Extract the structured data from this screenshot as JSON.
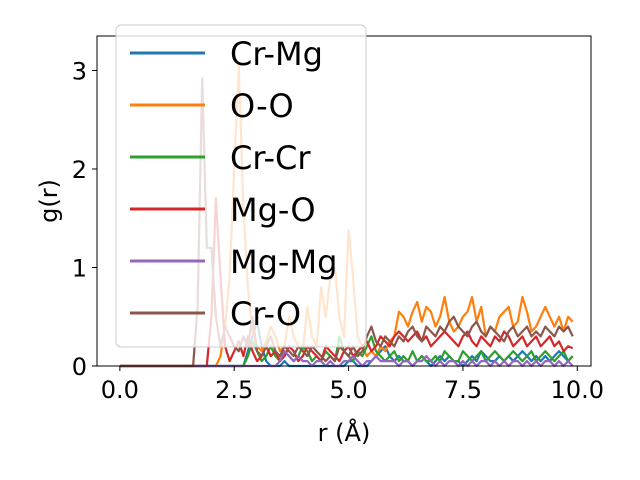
{
  "chart_data": {
    "type": "line",
    "title": "",
    "xlabel": "r (Å)",
    "ylabel": "g(r)",
    "xlim": [
      -0.5,
      10.3
    ],
    "ylim": [
      0,
      3.35
    ],
    "xticks": [
      "0.0",
      "2.5",
      "5.0",
      "7.5",
      "10.0"
    ],
    "xtick_values": [
      0,
      2.5,
      5,
      7.5,
      10
    ],
    "yticks": [
      "0",
      "1",
      "2",
      "3"
    ],
    "ytick_values": [
      0,
      1,
      2,
      3
    ],
    "grid": false,
    "legend": "upper-left",
    "x": [
      0,
      0.1,
      0.2,
      0.3,
      0.4,
      0.5,
      0.6,
      0.7,
      0.8,
      0.9,
      1.0,
      1.1,
      1.2,
      1.3,
      1.4,
      1.5,
      1.6,
      1.7,
      1.8,
      1.9,
      2.0,
      2.1,
      2.2,
      2.3,
      2.4,
      2.5,
      2.6,
      2.7,
      2.8,
      2.9,
      3.0,
      3.1,
      3.2,
      3.3,
      3.4,
      3.5,
      3.6,
      3.7,
      3.8,
      3.9,
      4.0,
      4.1,
      4.2,
      4.3,
      4.4,
      4.5,
      4.6,
      4.7,
      4.8,
      4.9,
      5.0,
      5.1,
      5.2,
      5.3,
      5.4,
      5.5,
      5.6,
      5.7,
      5.8,
      5.9,
      6.0,
      6.1,
      6.2,
      6.3,
      6.4,
      6.5,
      6.6,
      6.7,
      6.8,
      6.9,
      7.0,
      7.1,
      7.2,
      7.3,
      7.4,
      7.5,
      7.6,
      7.7,
      7.8,
      7.9,
      8.0,
      8.1,
      8.2,
      8.3,
      8.4,
      8.5,
      8.6,
      8.7,
      8.8,
      8.9,
      9.0,
      9.1,
      9.2,
      9.3,
      9.4,
      9.5,
      9.6,
      9.7,
      9.8,
      9.9
    ],
    "series": [
      {
        "name": "Cr-Mg",
        "color": "#1f77b4",
        "values": [
          0,
          0,
          0,
          0,
          0,
          0,
          0,
          0,
          0,
          0,
          0,
          0,
          0,
          0,
          0,
          0,
          0,
          0,
          0,
          0,
          0,
          0,
          0,
          0,
          0,
          0,
          0,
          0,
          0.15,
          0.3,
          0.45,
          0.2,
          0.05,
          0,
          0,
          0,
          0.05,
          0,
          0,
          0,
          0,
          0,
          0,
          0,
          0,
          0,
          0,
          0,
          0,
          0,
          0.05,
          0.05,
          0,
          0,
          0,
          0.05,
          0.1,
          0.15,
          0.2,
          0.1,
          0.05,
          0.1,
          0.05,
          0.05,
          0,
          0.05,
          0.1,
          0.05,
          0,
          0.05,
          0.1,
          0.05,
          0.1,
          0.05,
          0.05,
          0,
          0.05,
          0.1,
          0.05,
          0.15,
          0.1,
          0.05,
          0.05,
          0.1,
          0.05,
          0.1,
          0.05,
          0.1,
          0.15,
          0.1,
          0.05,
          0.1,
          0.05,
          0.1,
          0.05,
          0.1,
          0.15,
          0.1,
          0.05,
          0.1
        ]
      },
      {
        "name": "O-O",
        "color": "#ff7f0e",
        "values": [
          0,
          0,
          0,
          0,
          0,
          0,
          0,
          0,
          0,
          0,
          0,
          0,
          0,
          0,
          0,
          0,
          0,
          0,
          0,
          0,
          0,
          0,
          0.1,
          0.4,
          0.9,
          2.0,
          3.05,
          1.6,
          0.8,
          0.35,
          0.2,
          0.15,
          0.25,
          0.4,
          0.3,
          0.15,
          0.2,
          0.5,
          0.3,
          0.2,
          0.15,
          0.6,
          0.3,
          0.2,
          0.8,
          0.5,
          0.9,
          1.0,
          0.5,
          0.3,
          1.38,
          0.9,
          0.3,
          0.2,
          0.1,
          0.15,
          0.1,
          0.2,
          0.15,
          0.25,
          0.3,
          0.55,
          0.5,
          0.4,
          0.55,
          0.65,
          0.45,
          0.6,
          0.55,
          0.4,
          0.5,
          0.7,
          0.45,
          0.35,
          0.4,
          0.5,
          0.55,
          0.7,
          0.45,
          0.6,
          0.3,
          0.4,
          0.35,
          0.5,
          0.55,
          0.6,
          0.4,
          0.45,
          0.7,
          0.55,
          0.35,
          0.4,
          0.5,
          0.6,
          0.5,
          0.4,
          0.5,
          0.35,
          0.5,
          0.45
        ]
      },
      {
        "name": "Cr-Cr",
        "color": "#2ca02c",
        "values": [
          0,
          0,
          0,
          0,
          0,
          0,
          0,
          0,
          0,
          0,
          0,
          0,
          0,
          0,
          0,
          0,
          0,
          0,
          0,
          0,
          0,
          0,
          0,
          0,
          0,
          0,
          0,
          0,
          0.1,
          0.25,
          0.15,
          0.05,
          0.1,
          0.2,
          0.1,
          0.05,
          0.15,
          0.1,
          0.05,
          0.1,
          0.2,
          0.15,
          0.05,
          0.1,
          0.05,
          0.15,
          0.1,
          0.05,
          0.3,
          0.15,
          0.1,
          0.05,
          0.15,
          0.1,
          0.2,
          0.3,
          0.15,
          0.1,
          0.05,
          0.1,
          0.15,
          0.05,
          0.1,
          0.05,
          0.15,
          0.05,
          0.1,
          0.05,
          0.05,
          0.1,
          0.05,
          0.15,
          0.1,
          0.05,
          0.05,
          0.15,
          0.1,
          0.05,
          0.1,
          0.15,
          0.05,
          0.1,
          0.15,
          0.1,
          0.05,
          0.1,
          0.15,
          0.1,
          0.05,
          0.1,
          0.15,
          0.05,
          0.1,
          0.15,
          0.1,
          0.05,
          0.1,
          0.15,
          0.05,
          0.1
        ]
      },
      {
        "name": "Mg-O",
        "color": "#d62728",
        "values": [
          0,
          0,
          0,
          0,
          0,
          0,
          0,
          0,
          0,
          0,
          0,
          0,
          0,
          0,
          0,
          0,
          0,
          0,
          0,
          0,
          0.5,
          1.7,
          0.9,
          0.2,
          0.05,
          0.15,
          0.25,
          0.1,
          0.3,
          0.15,
          0.05,
          0.1,
          0.2,
          0.1,
          0.15,
          0.05,
          0.1,
          0.2,
          0.15,
          0.05,
          0.1,
          0.2,
          0.15,
          0.1,
          0.05,
          0.2,
          0.15,
          0.1,
          0.05,
          0.15,
          0.2,
          0.1,
          0.15,
          0.2,
          0.25,
          0.15,
          0.2,
          0.3,
          0.25,
          0.2,
          0.3,
          0.35,
          0.3,
          0.25,
          0.3,
          0.35,
          0.25,
          0.3,
          0.2,
          0.25,
          0.3,
          0.35,
          0.3,
          0.25,
          0.2,
          0.3,
          0.35,
          0.25,
          0.2,
          0.3,
          0.25,
          0.2,
          0.3,
          0.25,
          0.35,
          0.3,
          0.2,
          0.25,
          0.3,
          0.2,
          0.25,
          0.3,
          0.2,
          0.25,
          0.3,
          0.2,
          0.25,
          0.15,
          0.2,
          0.18
        ]
      },
      {
        "name": "Mg-Mg",
        "color": "#9467bd",
        "values": [
          0,
          0,
          0,
          0,
          0,
          0,
          0,
          0,
          0,
          0,
          0,
          0,
          0,
          0,
          0,
          0,
          0,
          0,
          0,
          0,
          0,
          0,
          0,
          0,
          0,
          0,
          0,
          0,
          0,
          0,
          0,
          0,
          0,
          0,
          0,
          0.05,
          0.15,
          0.1,
          0.05,
          0.1,
          0.05,
          0.05,
          0,
          0.05,
          0.05,
          0,
          0.05,
          0,
          0,
          0.05,
          0.05,
          0.1,
          0.05,
          0,
          0.05,
          0.05,
          0.1,
          0.05,
          0.05,
          0.05,
          0.05,
          0,
          0.05,
          0.05,
          0,
          0.05,
          0.05,
          0.1,
          0.05,
          0,
          0.05,
          0,
          0.05,
          0.05,
          0,
          0.05,
          0,
          0.05,
          0,
          0.05,
          0.05,
          0,
          0.05,
          0,
          0.05,
          0,
          0.05,
          0.05,
          0,
          0.05,
          0,
          0.05,
          0,
          0.05,
          0.05,
          0,
          0.05,
          0,
          0.05,
          0
        ]
      },
      {
        "name": "Cr-O",
        "color": "#8c564b",
        "values": [
          0,
          0,
          0,
          0,
          0,
          0,
          0,
          0,
          0,
          0,
          0,
          0,
          0,
          0,
          0,
          0,
          0,
          0.6,
          2.92,
          1.2,
          1.2,
          0.5,
          0.2,
          0.4,
          0.3,
          0.2,
          0.15,
          0.3,
          0.2,
          0.5,
          0.15,
          0.1,
          0.2,
          0.3,
          0.15,
          0.1,
          0.2,
          0.15,
          0.1,
          0.2,
          0.15,
          0.1,
          0.2,
          0.15,
          0.1,
          0.05,
          0.1,
          0.05,
          0.2,
          0.15,
          0.1,
          0.2,
          0.1,
          0.15,
          0.3,
          0.4,
          0.25,
          0.2,
          0.3,
          0.25,
          0.2,
          0.3,
          0.25,
          0.35,
          0.4,
          0.3,
          0.25,
          0.4,
          0.35,
          0.3,
          0.4,
          0.35,
          0.45,
          0.5,
          0.4,
          0.35,
          0.3,
          0.4,
          0.45,
          0.35,
          0.3,
          0.4,
          0.35,
          0.3,
          0.25,
          0.35,
          0.4,
          0.3,
          0.35,
          0.4,
          0.3,
          0.35,
          0.3,
          0.4,
          0.35,
          0.3,
          0.4,
          0.35,
          0.4,
          0.3
        ]
      }
    ]
  }
}
